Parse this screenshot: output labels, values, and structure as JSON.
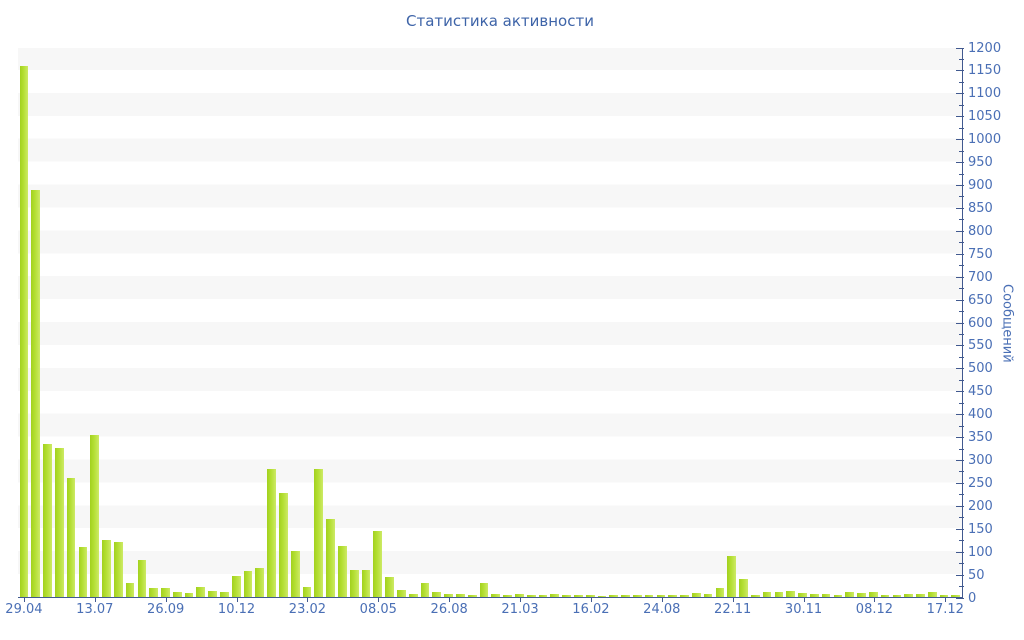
{
  "title": "Статистика активности",
  "y_axis": {
    "label": "Сообщений",
    "min": 0,
    "max": 1200,
    "major_step": 50,
    "minor_step": 25
  },
  "x_axis": {
    "tick_labels": [
      "29.04",
      "13.07",
      "26.09",
      "10.12",
      "23.02",
      "08.05",
      "26.08",
      "21.03",
      "16.02",
      "24.08",
      "22.11",
      "30.11",
      "08.12",
      "17.12"
    ],
    "label_every_n_bars": 6
  },
  "colors": {
    "bar": "#b4df33",
    "bar_gradient_left": "#a2d11e",
    "bar_gradient_right": "#cdea66",
    "axis_line": "#41598f",
    "axis_label": "#4a6fb5",
    "title": "#3e64a8",
    "band_gray": "#f7f7f7",
    "band_white": "#ffffff"
  },
  "chart_data": {
    "type": "bar",
    "title": "Статистика активности",
    "xlabel": "",
    "ylabel": "Сообщений",
    "ylim": [
      0,
      1200
    ],
    "grid": "alternating horizontal bands every 50 units",
    "legend": "none",
    "categories": [
      "29.04",
      "13.07",
      "26.09",
      "10.12",
      "23.02",
      "08.05",
      "26.08",
      "21.03",
      "16.02",
      "24.08",
      "22.11",
      "30.11",
      "08.12",
      "17.12"
    ],
    "category_positions_bar_index": [
      0,
      6,
      12,
      18,
      24,
      30,
      36,
      42,
      48,
      54,
      60,
      66,
      72,
      78
    ],
    "values": [
      1160,
      890,
      335,
      325,
      260,
      110,
      355,
      125,
      120,
      30,
      80,
      20,
      20,
      10,
      8,
      22,
      13,
      12,
      45,
      56,
      63,
      280,
      227,
      100,
      21,
      280,
      170,
      112,
      60,
      60,
      145,
      44,
      15,
      7,
      30,
      10,
      7,
      6,
      5,
      30,
      6,
      4,
      6,
      4,
      5,
      7,
      4,
      5,
      4,
      3,
      5,
      4,
      5,
      4,
      5,
      4,
      5,
      8,
      6,
      20,
      90,
      40,
      5,
      12,
      11,
      14,
      8,
      6,
      6,
      4,
      10,
      9,
      11,
      5,
      4,
      6,
      6,
      10,
      5,
      4
    ]
  }
}
